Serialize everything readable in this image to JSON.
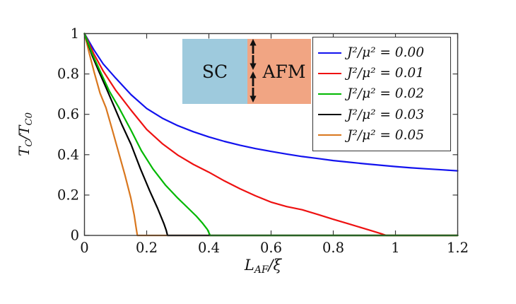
{
  "figure": {
    "inset": {
      "sc_label": "SC",
      "afm_label": "AFM",
      "sc_color": "#9ecadd",
      "afm_color": "#f1a583",
      "arrow_color": "#111111",
      "arrow_pattern": [
        "up",
        "down",
        "up",
        "down"
      ]
    },
    "axes": {
      "xlabel_main": "L",
      "xlabel_sub": "AF",
      "xlabel_rest": "/ξ",
      "ylabel_t1": "T",
      "ylabel_s1": "C",
      "ylabel_t2": "/T",
      "ylabel_s2": "C0"
    }
  },
  "chart_data": {
    "type": "line",
    "title": "",
    "xlabel": "L_AF/ξ",
    "ylabel": "T_C/T_C0",
    "xlim": [
      0,
      1.2
    ],
    "ylim": [
      0,
      1
    ],
    "grid": false,
    "legend_position": "top-right",
    "frame_color": "#3a3a3a",
    "tick_label_color": "#111111",
    "xticks": [
      0,
      0.2,
      0.4,
      0.6,
      0.8,
      1,
      1.2
    ],
    "xtick_labels": [
      "0",
      "0.2",
      "0.4",
      "0.6",
      "0.8",
      "1",
      "1.2"
    ],
    "yticks": [
      0,
      0.2,
      0.4,
      0.6,
      0.8,
      1
    ],
    "ytick_labels": [
      "0",
      "0.2",
      "0.4",
      "0.6",
      "0.8",
      "1"
    ],
    "series": [
      {
        "name": "J²/μ² = 0.00",
        "color": "#1212ee",
        "points": [
          [
            0,
            1
          ],
          [
            0.03,
            0.92
          ],
          [
            0.06,
            0.85
          ],
          [
            0.1,
            0.78
          ],
          [
            0.15,
            0.697
          ],
          [
            0.2,
            0.629
          ],
          [
            0.25,
            0.581
          ],
          [
            0.3,
            0.544
          ],
          [
            0.35,
            0.514
          ],
          [
            0.4,
            0.488
          ],
          [
            0.45,
            0.466
          ],
          [
            0.5,
            0.447
          ],
          [
            0.55,
            0.43
          ],
          [
            0.6,
            0.416
          ],
          [
            0.65,
            0.403
          ],
          [
            0.7,
            0.391
          ],
          [
            0.75,
            0.381
          ],
          [
            0.8,
            0.371
          ],
          [
            0.85,
            0.363
          ],
          [
            0.9,
            0.355
          ],
          [
            0.95,
            0.348
          ],
          [
            1.0,
            0.341
          ],
          [
            1.05,
            0.335
          ],
          [
            1.1,
            0.33
          ],
          [
            1.15,
            0.325
          ],
          [
            1.2,
            0.32
          ]
        ]
      },
      {
        "name": "J²/μ² = 0.01",
        "color": "#ee1111",
        "points": [
          [
            0,
            1
          ],
          [
            0.03,
            0.9
          ],
          [
            0.06,
            0.815
          ],
          [
            0.1,
            0.72
          ],
          [
            0.15,
            0.62
          ],
          [
            0.2,
            0.525
          ],
          [
            0.25,
            0.455
          ],
          [
            0.3,
            0.398
          ],
          [
            0.35,
            0.352
          ],
          [
            0.4,
            0.313
          ],
          [
            0.45,
            0.27
          ],
          [
            0.5,
            0.231
          ],
          [
            0.55,
            0.196
          ],
          [
            0.6,
            0.165
          ],
          [
            0.65,
            0.143
          ],
          [
            0.7,
            0.127
          ],
          [
            0.75,
            0.104
          ],
          [
            0.8,
            0.08
          ],
          [
            0.85,
            0.057
          ],
          [
            0.9,
            0.034
          ],
          [
            0.93,
            0.02
          ],
          [
            0.955,
            0.008
          ],
          [
            0.97,
            0
          ],
          [
            1.2,
            0
          ]
        ]
      },
      {
        "name": "J²/μ² = 0.02",
        "color": "#00b800",
        "points": [
          [
            0,
            1
          ],
          [
            0.025,
            0.9
          ],
          [
            0.05,
            0.815
          ],
          [
            0.08,
            0.715
          ],
          [
            0.11,
            0.635
          ],
          [
            0.15,
            0.52
          ],
          [
            0.183,
            0.42
          ],
          [
            0.22,
            0.33
          ],
          [
            0.26,
            0.25
          ],
          [
            0.3,
            0.185
          ],
          [
            0.33,
            0.14
          ],
          [
            0.36,
            0.095
          ],
          [
            0.38,
            0.06
          ],
          [
            0.395,
            0.03
          ],
          [
            0.404,
            0
          ],
          [
            1.2,
            0
          ]
        ]
      },
      {
        "name": "J²/μ² = 0.03",
        "color": "#000000",
        "points": [
          [
            0,
            1
          ],
          [
            0.025,
            0.89
          ],
          [
            0.047,
            0.81
          ],
          [
            0.07,
            0.73
          ],
          [
            0.097,
            0.633
          ],
          [
            0.12,
            0.55
          ],
          [
            0.15,
            0.45
          ],
          [
            0.18,
            0.33
          ],
          [
            0.21,
            0.22
          ],
          [
            0.235,
            0.135
          ],
          [
            0.255,
            0.06
          ],
          [
            0.263,
            0.025
          ],
          [
            0.267,
            0
          ],
          [
            1.2,
            0
          ]
        ]
      },
      {
        "name": "J²/μ² = 0.05",
        "color": "#d9771e",
        "points": [
          [
            0,
            1
          ],
          [
            0.015,
            0.905
          ],
          [
            0.031,
            0.81
          ],
          [
            0.05,
            0.705
          ],
          [
            0.069,
            0.633
          ],
          [
            0.09,
            0.52
          ],
          [
            0.11,
            0.41
          ],
          [
            0.13,
            0.3
          ],
          [
            0.149,
            0.185
          ],
          [
            0.16,
            0.1
          ],
          [
            0.166,
            0.04
          ],
          [
            0.17,
            0
          ],
          [
            1.2,
            0
          ]
        ]
      }
    ]
  }
}
